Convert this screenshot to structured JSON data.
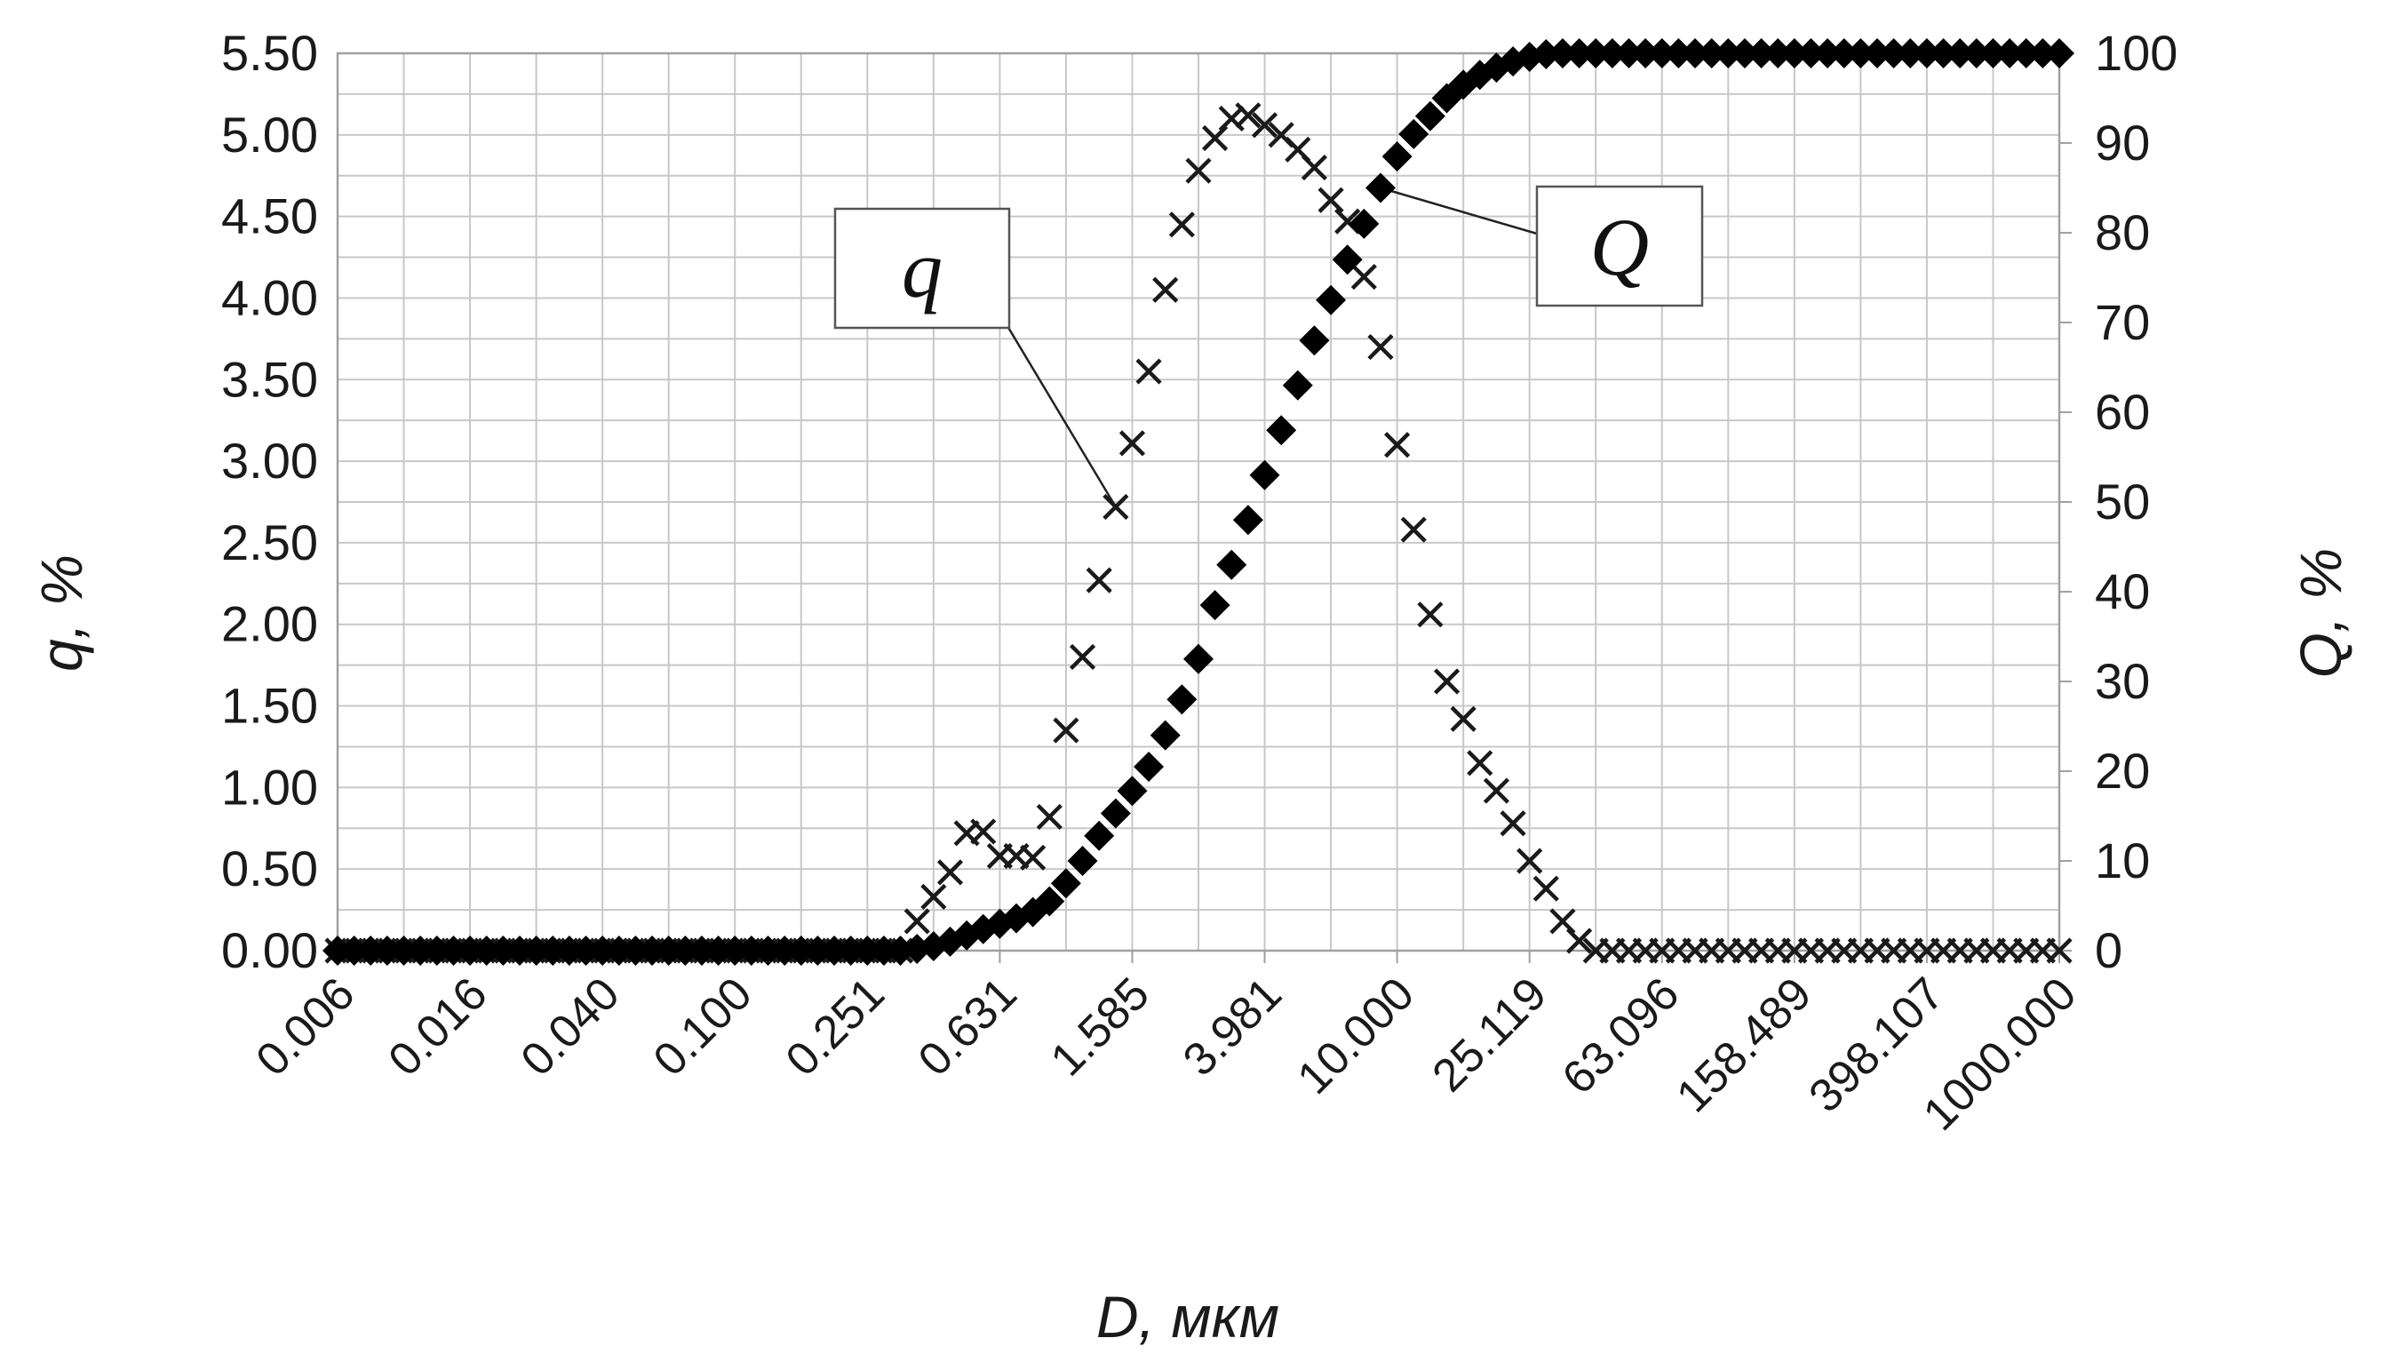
{
  "chart_data": {
    "type": "scatter",
    "title": "",
    "xlabel": "D, мкм",
    "ylabel_left": "q, %",
    "ylabel_right": "Q, %",
    "x_scale": "log",
    "x_tick_labels": [
      "0.006",
      "0.016",
      "0.040",
      "0.100",
      "0.251",
      "0.631",
      "1.585",
      "3.981",
      "10.000",
      "25.119",
      "63.096",
      "158.489",
      "398.107",
      "1000.000"
    ],
    "x_tick_values": [
      0.00631,
      0.01585,
      0.03981,
      0.1,
      0.2512,
      0.631,
      1.585,
      3.981,
      10.0,
      25.119,
      63.096,
      158.489,
      398.107,
      1000.0
    ],
    "xlim": [
      0.00631,
      1000.0
    ],
    "ylim_left": [
      0,
      5.5
    ],
    "ylim_right": [
      0,
      100
    ],
    "y_left_ticks": [
      "0.00",
      "0.50",
      "1.00",
      "1.50",
      "2.00",
      "2.50",
      "3.00",
      "3.50",
      "4.00",
      "4.50",
      "5.00",
      "5.50"
    ],
    "y_right_ticks": [
      "0",
      "10",
      "20",
      "30",
      "40",
      "50",
      "60",
      "70",
      "80",
      "90",
      "100"
    ],
    "grid": true,
    "x_samples_per_decade": 20,
    "series": [
      {
        "name": "q",
        "marker": "cross",
        "axis": "left",
        "points": [
          [
            0.00631,
            0
          ],
          [
            0.00708,
            0
          ],
          [
            0.00794,
            0
          ],
          [
            0.00891,
            0
          ],
          [
            0.01,
            0
          ],
          [
            0.01122,
            0
          ],
          [
            0.01259,
            0
          ],
          [
            0.01413,
            0
          ],
          [
            0.01585,
            0
          ],
          [
            0.01778,
            0
          ],
          [
            0.01995,
            0
          ],
          [
            0.02239,
            0
          ],
          [
            0.02512,
            0
          ],
          [
            0.02818,
            0
          ],
          [
            0.03162,
            0
          ],
          [
            0.03548,
            0
          ],
          [
            0.03981,
            0
          ],
          [
            0.04467,
            0
          ],
          [
            0.05012,
            0
          ],
          [
            0.05623,
            0
          ],
          [
            0.0631,
            0
          ],
          [
            0.07079,
            0
          ],
          [
            0.07943,
            0
          ],
          [
            0.08913,
            0
          ],
          [
            0.1,
            0
          ],
          [
            0.1122,
            0
          ],
          [
            0.1259,
            0
          ],
          [
            0.1413,
            0
          ],
          [
            0.1585,
            0
          ],
          [
            0.1778,
            0
          ],
          [
            0.1995,
            0
          ],
          [
            0.2239,
            0
          ],
          [
            0.2512,
            0
          ],
          [
            0.2818,
            0
          ],
          [
            0.3162,
            0
          ],
          [
            0.3548,
            0.18
          ],
          [
            0.3981,
            0.33
          ],
          [
            0.4467,
            0.48
          ],
          [
            0.5012,
            0.72
          ],
          [
            0.5623,
            0.73
          ],
          [
            0.631,
            0.58
          ],
          [
            0.7079,
            0.58
          ],
          [
            0.7943,
            0.57
          ],
          [
            0.8913,
            0.82
          ],
          [
            1.0,
            1.35
          ],
          [
            1.122,
            1.8
          ],
          [
            1.259,
            2.27
          ],
          [
            1.413,
            2.72
          ],
          [
            1.585,
            3.11
          ],
          [
            1.778,
            3.55
          ],
          [
            1.995,
            4.05
          ],
          [
            2.239,
            4.45
          ],
          [
            2.512,
            4.78
          ],
          [
            2.818,
            4.98
          ],
          [
            3.162,
            5.1
          ],
          [
            3.548,
            5.12
          ],
          [
            3.981,
            5.06
          ],
          [
            4.467,
            5.0
          ],
          [
            5.012,
            4.91
          ],
          [
            5.623,
            4.8
          ],
          [
            6.31,
            4.6
          ],
          [
            7.079,
            4.47
          ],
          [
            7.943,
            4.13
          ],
          [
            8.913,
            3.7
          ],
          [
            10.0,
            3.1
          ],
          [
            11.22,
            2.58
          ],
          [
            12.59,
            2.06
          ],
          [
            14.13,
            1.65
          ],
          [
            15.85,
            1.42
          ],
          [
            17.78,
            1.15
          ],
          [
            19.95,
            0.98
          ],
          [
            22.39,
            0.78
          ],
          [
            25.12,
            0.55
          ],
          [
            28.18,
            0.38
          ],
          [
            31.62,
            0.18
          ],
          [
            35.48,
            0.06
          ],
          [
            39.81,
            0
          ],
          [
            44.67,
            0
          ],
          [
            50.12,
            0
          ],
          [
            56.23,
            0
          ],
          [
            63.1,
            0
          ],
          [
            70.79,
            0
          ],
          [
            79.43,
            0
          ],
          [
            89.13,
            0
          ],
          [
            100,
            0
          ],
          [
            112.2,
            0
          ],
          [
            125.9,
            0
          ],
          [
            141.3,
            0
          ],
          [
            158.5,
            0
          ],
          [
            177.8,
            0
          ],
          [
            199.5,
            0
          ],
          [
            223.9,
            0
          ],
          [
            251.2,
            0
          ],
          [
            281.8,
            0
          ],
          [
            316.2,
            0
          ],
          [
            354.8,
            0
          ],
          [
            398.1,
            0
          ],
          [
            446.7,
            0
          ],
          [
            501.2,
            0
          ],
          [
            562.3,
            0
          ],
          [
            631,
            0
          ],
          [
            707.9,
            0
          ],
          [
            794.3,
            0
          ],
          [
            891.3,
            0
          ],
          [
            1000,
            0
          ]
        ]
      },
      {
        "name": "Q",
        "marker": "diamond",
        "axis": "right",
        "points": [
          [
            0.00631,
            0
          ],
          [
            0.00708,
            0
          ],
          [
            0.00794,
            0
          ],
          [
            0.00891,
            0
          ],
          [
            0.01,
            0
          ],
          [
            0.01122,
            0
          ],
          [
            0.01259,
            0
          ],
          [
            0.01413,
            0
          ],
          [
            0.01585,
            0
          ],
          [
            0.01778,
            0
          ],
          [
            0.01995,
            0
          ],
          [
            0.02239,
            0
          ],
          [
            0.02512,
            0
          ],
          [
            0.02818,
            0
          ],
          [
            0.03162,
            0
          ],
          [
            0.03548,
            0
          ],
          [
            0.03981,
            0
          ],
          [
            0.04467,
            0
          ],
          [
            0.05012,
            0
          ],
          [
            0.05623,
            0
          ],
          [
            0.0631,
            0
          ],
          [
            0.07079,
            0
          ],
          [
            0.07943,
            0
          ],
          [
            0.08913,
            0
          ],
          [
            0.1,
            0
          ],
          [
            0.1122,
            0
          ],
          [
            0.1259,
            0
          ],
          [
            0.1413,
            0
          ],
          [
            0.1585,
            0
          ],
          [
            0.1778,
            0
          ],
          [
            0.1995,
            0
          ],
          [
            0.2239,
            0
          ],
          [
            0.2512,
            0
          ],
          [
            0.2818,
            0
          ],
          [
            0.3162,
            0
          ],
          [
            0.3548,
            0.2
          ],
          [
            0.3981,
            0.5
          ],
          [
            0.4467,
            1.0
          ],
          [
            0.5012,
            1.7
          ],
          [
            0.5623,
            2.4
          ],
          [
            0.631,
            3.0
          ],
          [
            0.7079,
            3.6
          ],
          [
            0.7943,
            4.3
          ],
          [
            0.8913,
            5.5
          ],
          [
            1.0,
            7.5
          ],
          [
            1.122,
            10.0
          ],
          [
            1.259,
            12.8
          ],
          [
            1.413,
            15.3
          ],
          [
            1.585,
            17.8
          ],
          [
            1.778,
            20.5
          ],
          [
            1.995,
            24.0
          ],
          [
            2.239,
            28.0
          ],
          [
            2.512,
            32.5
          ],
          [
            2.818,
            38.5
          ],
          [
            3.162,
            43.0
          ],
          [
            3.548,
            48.0
          ],
          [
            3.981,
            53.0
          ],
          [
            4.467,
            58.0
          ],
          [
            5.012,
            63.0
          ],
          [
            5.623,
            68.0
          ],
          [
            6.31,
            72.5
          ],
          [
            7.079,
            77.0
          ],
          [
            7.943,
            81.0
          ],
          [
            8.913,
            85.0
          ],
          [
            10.0,
            88.5
          ],
          [
            11.22,
            91.0
          ],
          [
            12.59,
            93.0
          ],
          [
            14.13,
            95.0
          ],
          [
            15.85,
            96.5
          ],
          [
            17.78,
            97.6
          ],
          [
            19.95,
            98.4
          ],
          [
            22.39,
            99.1
          ],
          [
            25.12,
            99.6
          ],
          [
            28.18,
            99.9
          ],
          [
            31.62,
            100
          ],
          [
            35.48,
            100
          ],
          [
            39.81,
            100
          ],
          [
            44.67,
            100
          ],
          [
            50.12,
            100
          ],
          [
            56.23,
            100
          ],
          [
            63.1,
            100
          ],
          [
            70.79,
            100
          ],
          [
            79.43,
            100
          ],
          [
            89.13,
            100
          ],
          [
            100,
            100
          ],
          [
            112.2,
            100
          ],
          [
            125.9,
            100
          ],
          [
            141.3,
            100
          ],
          [
            158.5,
            100
          ],
          [
            177.8,
            100
          ],
          [
            199.5,
            100
          ],
          [
            223.9,
            100
          ],
          [
            251.2,
            100
          ],
          [
            281.8,
            100
          ],
          [
            316.2,
            100
          ],
          [
            354.8,
            100
          ],
          [
            398.1,
            100
          ],
          [
            446.7,
            100
          ],
          [
            501.2,
            100
          ],
          [
            562.3,
            100
          ],
          [
            631,
            100
          ],
          [
            707.9,
            100
          ],
          [
            794.3,
            100
          ],
          [
            891.3,
            100
          ],
          [
            1000,
            100
          ]
        ]
      }
    ],
    "annotations": [
      {
        "text": "q",
        "target_series": "q",
        "target_point": [
          1.413,
          2.72
        ]
      },
      {
        "text": "Q",
        "target_series": "Q",
        "target_point": [
          8.913,
          85.0
        ]
      }
    ]
  }
}
